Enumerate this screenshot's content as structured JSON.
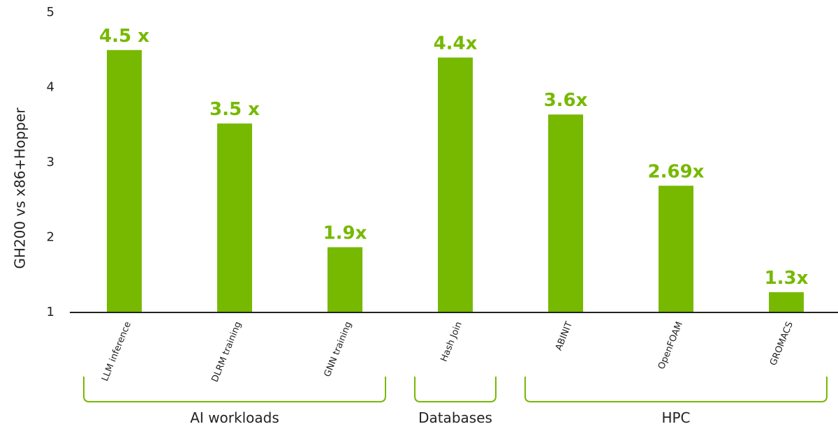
{
  "chart_data": {
    "type": "bar",
    "ylabel": "GH200 vs x86+Hopper",
    "ylim": [
      1,
      5
    ],
    "yticks": [
      "1",
      "2",
      "3",
      "4",
      "5"
    ],
    "grid": false,
    "categories": [
      "LLM inference",
      "DLRM training",
      "GNN training",
      "Hash Join",
      "ABINIT",
      "OpenFOAM",
      "GROMACS"
    ],
    "values": [
      4.5,
      3.52,
      1.87,
      4.4,
      3.64,
      2.69,
      1.27
    ],
    "data_labels": [
      "4.5 x",
      "3.5 x",
      "1.9x",
      "4.4x",
      "3.6x",
      "2.69x",
      "1.3x"
    ],
    "groups": [
      {
        "label": "AI workloads",
        "start": 0,
        "end": 2
      },
      {
        "label": "Databases",
        "start": 3,
        "end": 3
      },
      {
        "label": "HPC",
        "start": 4,
        "end": 6
      }
    ],
    "colors": {
      "bar": "#76b900",
      "label": "#76b900",
      "axis": "#222222"
    }
  }
}
